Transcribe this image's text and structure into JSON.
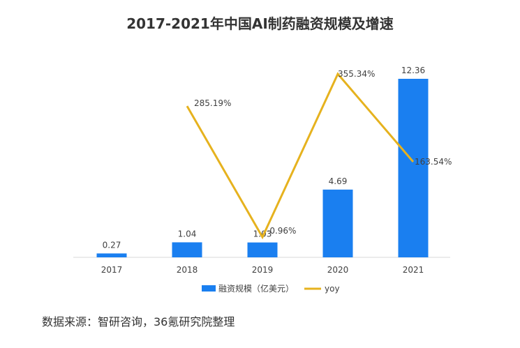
{
  "chart_data": {
    "type": "bar",
    "title": "2017-2021年中国AI制药融资规模及增速",
    "categories": [
      "2017",
      "2018",
      "2019",
      "2020",
      "2021"
    ],
    "series": [
      {
        "name": "融资规模（亿美元）",
        "type": "bar",
        "values": [
          0.27,
          1.04,
          1.03,
          4.69,
          12.36
        ],
        "labels": [
          "0.27",
          "1.04",
          "1.03",
          "4.69",
          "12.36"
        ]
      },
      {
        "name": "yoy",
        "type": "line",
        "values": [
          null,
          285.19,
          -0.96,
          355.34,
          163.54
        ],
        "labels": [
          "",
          "285.19%",
          "-0.96%",
          "355.34%",
          "163.54%"
        ]
      }
    ],
    "colors": {
      "bar": "#1a7ff0",
      "line": "#e6b21e",
      "axis": "#d9d9d9",
      "text": "#404040"
    },
    "legend_position": "bottom",
    "grid": false,
    "ylim_bar": [
      0,
      13
    ],
    "ylim_line": [
      -10,
      380
    ]
  },
  "source_note": "数据来源：智研咨询，36氪研究院整理"
}
